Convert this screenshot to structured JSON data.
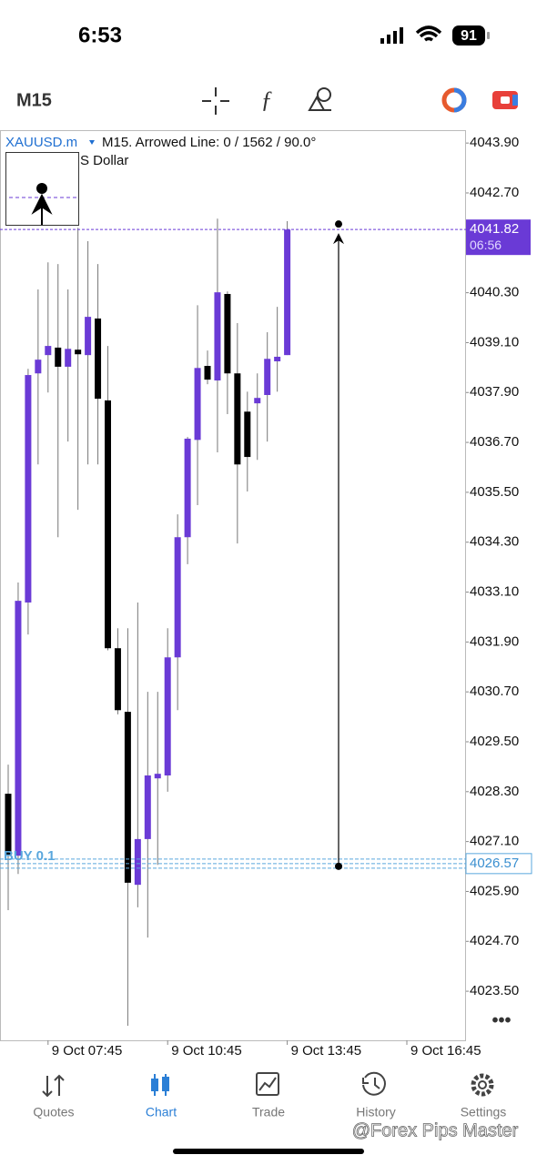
{
  "status_bar": {
    "time": "6:53",
    "battery": "91"
  },
  "toolbar": {
    "timeframe": "M15"
  },
  "chart_data": {
    "type": "candlestick",
    "symbol": "XAUUSD.m",
    "info": "M15. Arrowed Line: 0 / 1562 / 90.0°",
    "description": "S Dollar",
    "categories": [
      null,
      null,
      null,
      null,
      "9 Oct 07:45",
      null,
      null,
      null,
      null,
      null,
      null,
      null,
      null,
      null,
      null,
      null,
      "9 Oct 10:45",
      null,
      null,
      null,
      null,
      null,
      null,
      null,
      null,
      null,
      null,
      null,
      "9 Oct 13:45",
      null,
      null,
      null,
      null,
      null,
      null,
      null,
      null,
      null,
      null,
      null,
      "9 Oct 16:45"
    ],
    "open": [
      4028.25,
      4026.76,
      4032.85,
      4038.36,
      4038.8,
      4038.98,
      4038.52,
      4038.93,
      4038.8,
      4039.68,
      4037.71,
      4031.75,
      4030.22,
      4026.06,
      4027.16,
      4028.62,
      4028.69,
      4031.53,
      4034.42,
      4036.76,
      4038.54,
      4038.19,
      4040.27,
      4038.36,
      4037.44,
      4037.64,
      4037.84,
      4038.65,
      4038.8,
      null,
      null,
      null,
      null,
      null,
      null,
      null,
      null,
      null,
      null,
      null,
      null
    ],
    "high": [
      4028.95,
      4033.33,
      4038.47,
      4040.38,
      4041.03,
      4040.99,
      4040.38,
      4041.86,
      4041.54,
      4040.99,
      4039.02,
      4032.23,
      4032.23,
      4032.85,
      4030.7,
      4030.7,
      4032.23,
      4034.97,
      4036.83,
      4040.0,
      4038.91,
      4042.08,
      4040.33,
      4039.57,
      4037.92,
      4038.36,
      4039.35,
      4039.96,
      4042.02,
      null,
      null,
      null,
      null,
      null,
      null,
      null,
      null,
      null,
      null,
      null,
      null
    ],
    "low": [
      4025.45,
      4026.32,
      4032.08,
      4036.17,
      4037.9,
      4034.42,
      4036.72,
      4035.08,
      4036.17,
      4036.17,
      4031.7,
      4030.16,
      4022.67,
      4025.52,
      4024.79,
      4026.54,
      4028.3,
      4030.26,
      4033.77,
      4035.19,
      4038.1,
      4036.46,
      4037.38,
      4034.27,
      4035.52,
      4036.28,
      4036.72,
      4037.92,
      4038.8,
      null,
      null,
      null,
      null,
      null,
      null,
      null,
      null,
      null,
      null,
      null,
      null
    ],
    "close": [
      4026.76,
      4032.89,
      4038.32,
      4038.69,
      4039.02,
      4038.52,
      4038.95,
      4038.82,
      4039.72,
      4037.75,
      4031.75,
      4030.26,
      4026.11,
      4027.16,
      4028.69,
      4028.73,
      4031.53,
      4034.42,
      4036.79,
      4038.49,
      4038.21,
      4040.31,
      4038.36,
      4036.17,
      4036.35,
      4037.77,
      4038.71,
      4038.76,
      4041.82,
      null,
      null,
      null,
      null,
      null,
      null,
      null,
      null,
      null,
      null,
      null,
      null
    ],
    "bull_color": "#6a3ad6",
    "bear_color": "#000000",
    "ylim": [
      4022.32,
      4044.21
    ],
    "yticks": [
      {
        "value": 4043.9,
        "label": "4043.90"
      },
      {
        "value": 4042.7,
        "label": "4042.70"
      },
      {
        "value": 4040.3,
        "label": "4040.30"
      },
      {
        "value": 4039.1,
        "label": "4039.10"
      },
      {
        "value": 4037.9,
        "label": "4037.90"
      },
      {
        "value": 4036.7,
        "label": "4036.70"
      },
      {
        "value": 4035.5,
        "label": "4035.50"
      },
      {
        "value": 4034.3,
        "label": "4034.30"
      },
      {
        "value": 4033.1,
        "label": "4033.10"
      },
      {
        "value": 4031.9,
        "label": "4031.90"
      },
      {
        "value": 4030.7,
        "label": "4030.70"
      },
      {
        "value": 4029.5,
        "label": "4029.50"
      },
      {
        "value": 4028.3,
        "label": "4028.30"
      },
      {
        "value": 4027.1,
        "label": "4027.10"
      },
      {
        "value": 4025.9,
        "label": "4025.90"
      },
      {
        "value": 4024.7,
        "label": "4024.70"
      },
      {
        "value": 4023.5,
        "label": "4023.50"
      }
    ],
    "current_price": 4041.82,
    "bar_timer": "06:56",
    "position": {
      "label": "BUY 0.1",
      "price": 4026.57
    }
  },
  "tabs": [
    "Quotes",
    "Chart",
    "Trade",
    "History",
    "Settings"
  ],
  "watermark": "@Forex Pips Master"
}
